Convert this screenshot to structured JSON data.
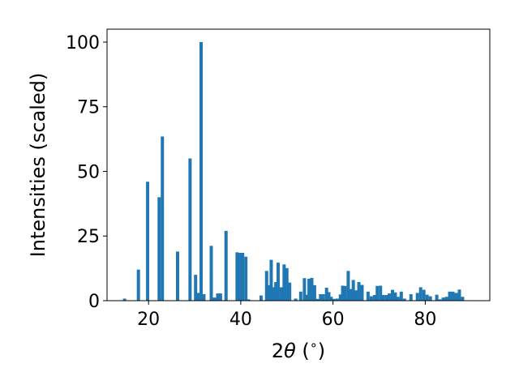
{
  "chart_data": {
    "type": "bar",
    "title": "",
    "xlabel_parts": [
      "2",
      "θ",
      " (",
      "∘",
      ")"
    ],
    "ylabel": "Intensities (scaled)",
    "xlim": [
      11,
      94
    ],
    "ylim": [
      0,
      105
    ],
    "xticks": [
      20,
      40,
      60,
      80
    ],
    "yticks": [
      0,
      25,
      50,
      75,
      100
    ],
    "bar_width": 0.7,
    "color": "#1f77b4",
    "grid": false,
    "x": [
      14.8,
      17.8,
      19.8,
      22.3,
      23.0,
      26.3,
      29.0,
      30.2,
      30.7,
      31.4,
      32.0,
      33.6,
      34.3,
      35.0,
      35.6,
      36.8,
      39.2,
      39.8,
      40.4,
      41.1,
      41.7,
      42.6,
      44.4,
      45.6,
      46.1,
      46.6,
      47.1,
      47.6,
      48.1,
      48.8,
      49.4,
      50.0,
      50.6,
      51.2,
      51.9,
      53.0,
      53.8,
      54.3,
      54.8,
      55.4,
      56.0,
      56.6,
      57.3,
      57.9,
      58.6,
      59.1,
      59.6,
      60.2,
      60.9,
      61.6,
      62.1,
      62.6,
      63.3,
      63.9,
      64.4,
      65.0,
      65.6,
      66.3,
      66.9,
      67.6,
      68.3,
      69.0,
      69.6,
      70.3,
      70.9,
      71.6,
      72.2,
      72.9,
      73.5,
      74.1,
      74.8,
      75.5,
      76.2,
      76.9,
      77.6,
      78.3,
      79.0,
      79.7,
      80.4,
      81.1,
      81.8,
      82.5,
      83.2,
      83.9,
      84.6,
      85.3,
      86.0,
      86.7,
      87.4,
      88.1,
      88.8,
      89.5
    ],
    "values": [
      0.8,
      12,
      46,
      40,
      63.5,
      19,
      55,
      10,
      3,
      100,
      2.5,
      21.2,
      1.2,
      2.8,
      2.8,
      27,
      18.7,
      18.5,
      18.5,
      17,
      0.5,
      0,
      2,
      11.5,
      6,
      15.8,
      5.2,
      7.2,
      14.7,
      5.2,
      14,
      12.6,
      7,
      0,
      0.8,
      3.5,
      8.7,
      2.3,
      8.5,
      8.8,
      6,
      0.7,
      2.5,
      2.5,
      5,
      3.3,
      1.5,
      0.7,
      0.8,
      2.4,
      5.8,
      5.7,
      11.5,
      4.5,
      8,
      4,
      7.2,
      6.1,
      0,
      3.5,
      1.7,
      2.2,
      5.7,
      5.8,
      2.2,
      2.2,
      2.8,
      4.2,
      3.2,
      1.5,
      3.5,
      0.8,
      0,
      2.5,
      0,
      3,
      5.2,
      4.2,
      2.3,
      1.7,
      0,
      2.3,
      0.5,
      1.2,
      1.5,
      3.5,
      3.5,
      3,
      4.3,
      1.5,
      0,
      0
    ]
  }
}
